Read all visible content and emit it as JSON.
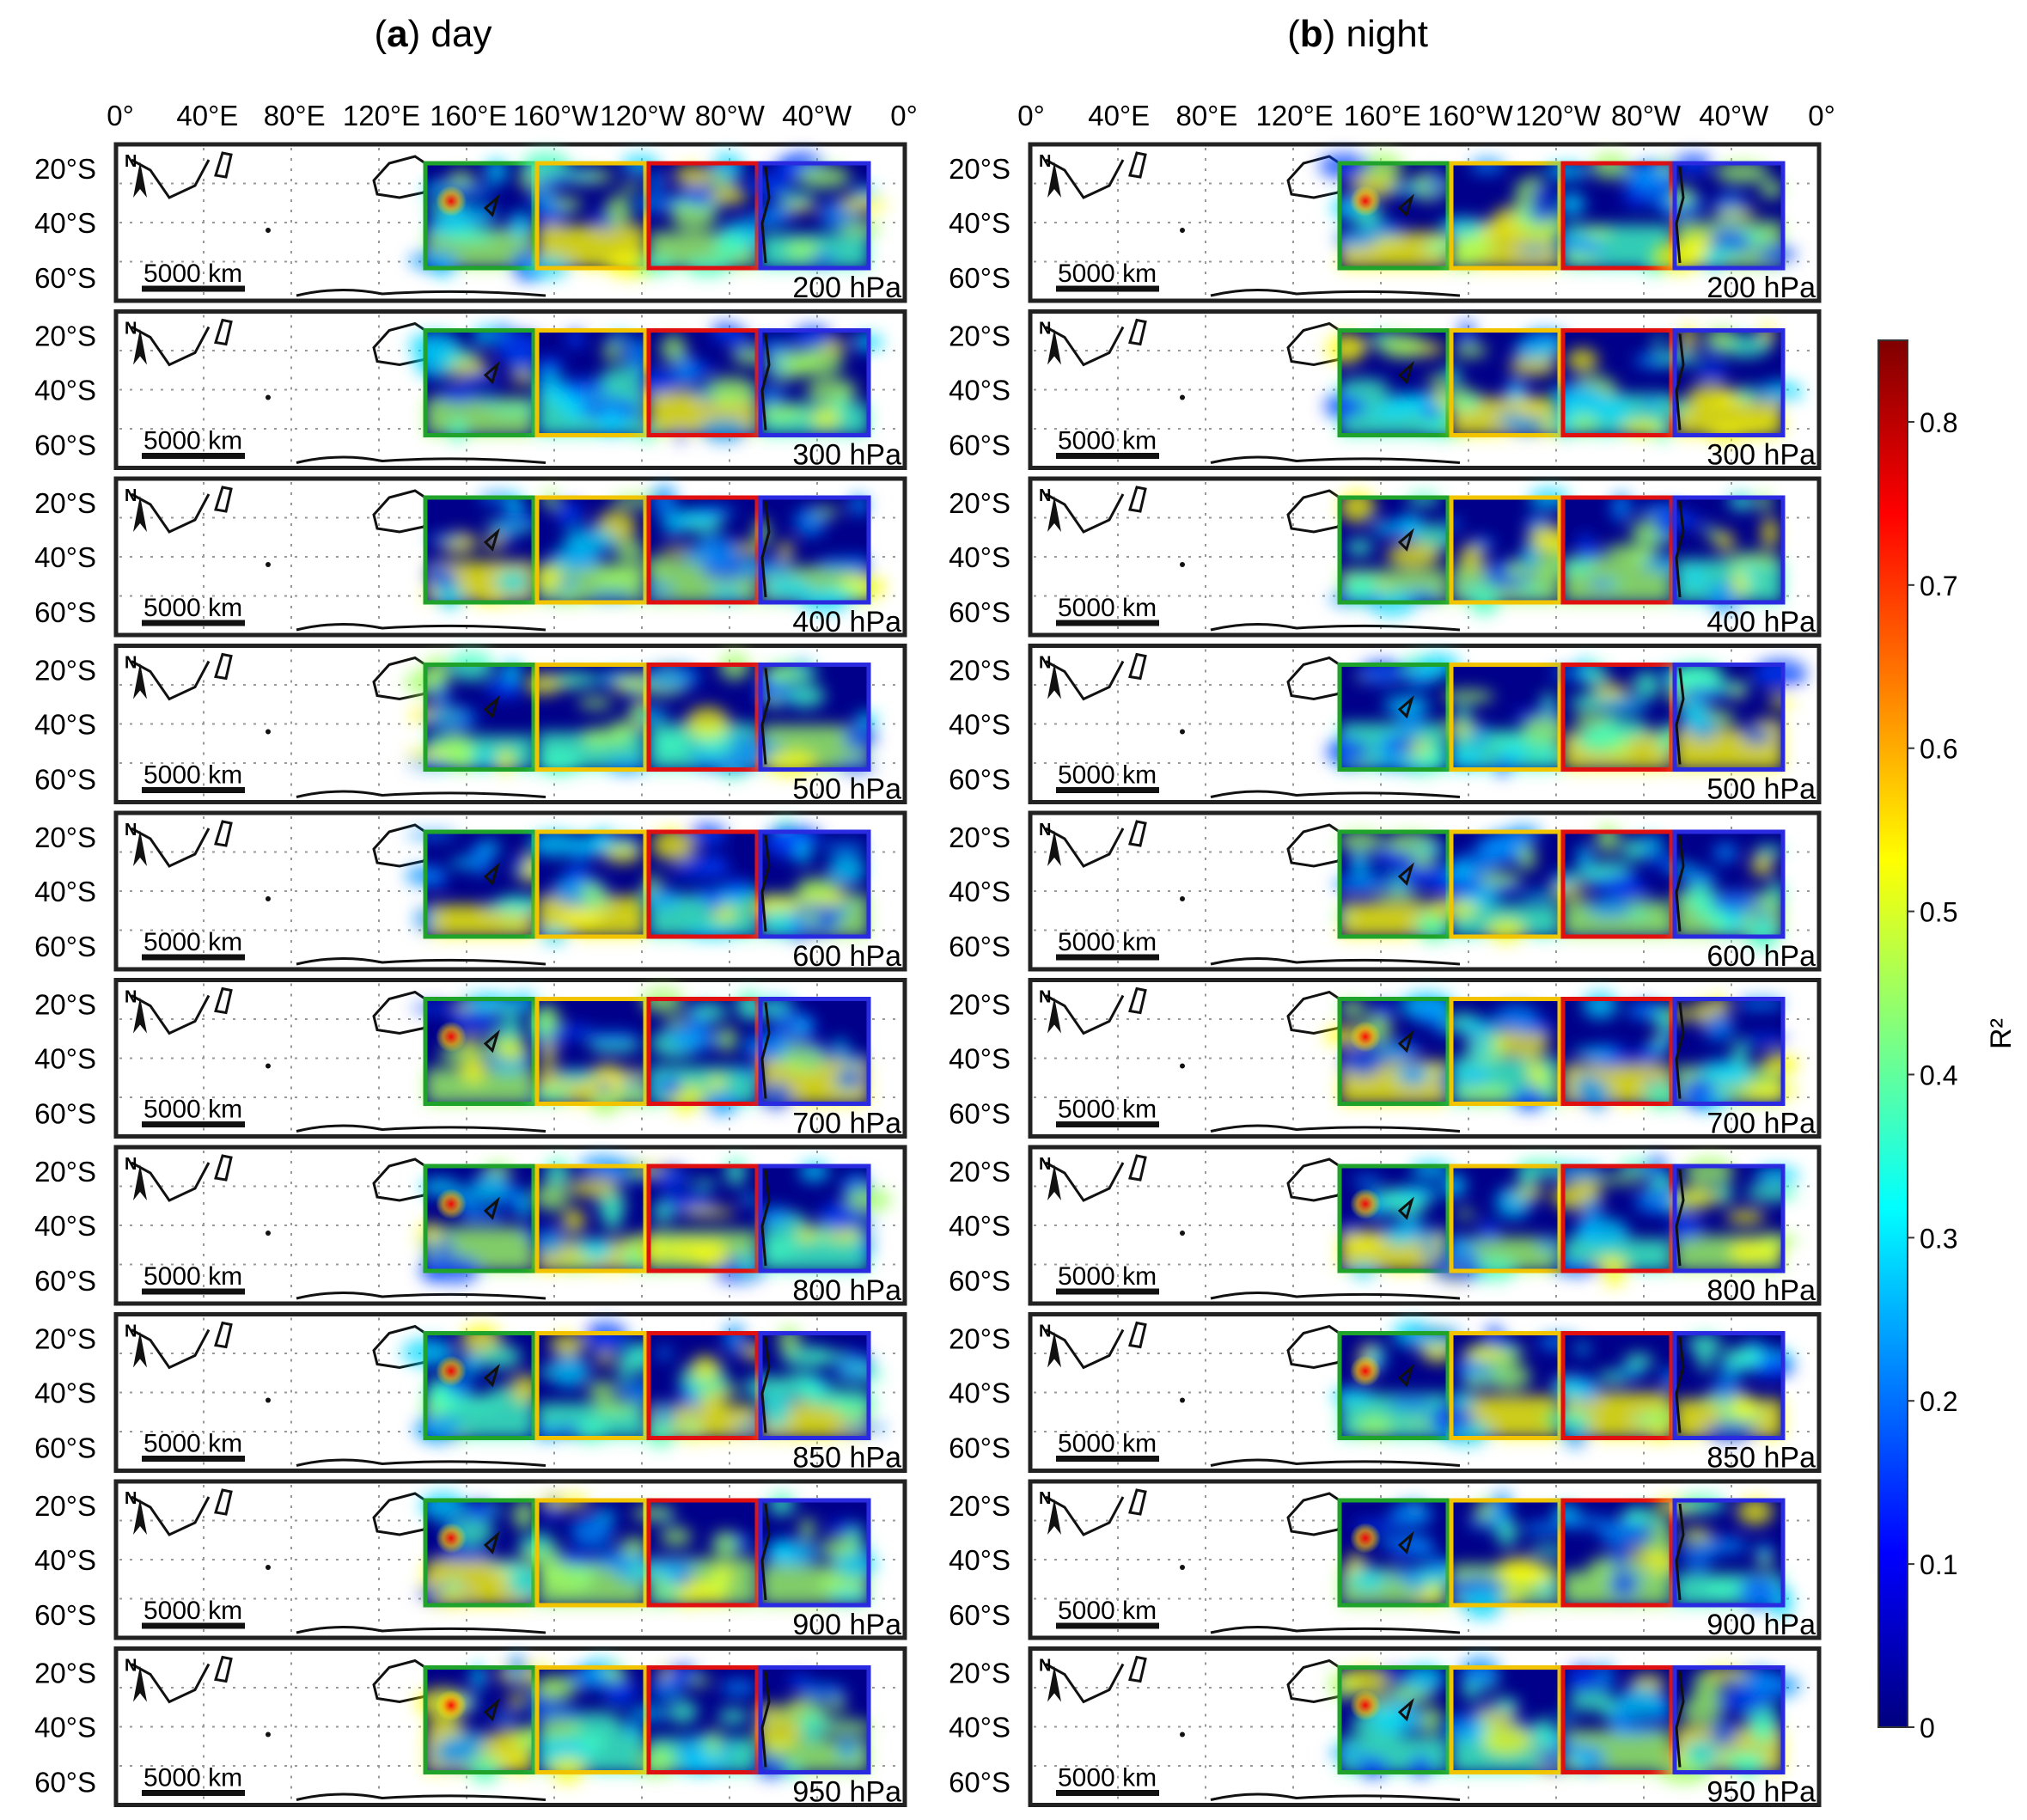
{
  "figure": {
    "panel_a": {
      "letter": "a",
      "title": "day"
    },
    "panel_b": {
      "letter": "b",
      "title": "night"
    }
  },
  "axes": {
    "longitude_ticks": [
      "0°",
      "40°E",
      "80°E",
      "120°E",
      "160°E",
      "160°W",
      "120°W",
      "80°W",
      "40°W",
      "0°"
    ],
    "latitude_ticks": [
      "20°S",
      "40°S",
      "60°S"
    ]
  },
  "map": {
    "scale_bar": "5000 km",
    "north_arrow": "N",
    "region_colors": [
      "#1fa32b",
      "#f2c400",
      "#e01010",
      "#2a2ae0"
    ]
  },
  "pressure_levels": [
    "200 hPa",
    "300 hPa",
    "400 hPa",
    "500 hPa",
    "600 hPa",
    "700 hPa",
    "800 hPa",
    "850 hPa",
    "900 hPa",
    "950 hPa"
  ],
  "colorbar": {
    "label": "R²",
    "ticks": [
      "0",
      "0.1",
      "0.2",
      "0.3",
      "0.4",
      "0.5",
      "0.6",
      "0.7",
      "0.8"
    ],
    "range": [
      0,
      0.85
    ],
    "colormap": "jet",
    "stops": [
      "#00007f",
      "#0000ff",
      "#007fff",
      "#00ffff",
      "#7fff7f",
      "#ffff00",
      "#ff7f00",
      "#ff0000",
      "#7f0000"
    ]
  }
}
